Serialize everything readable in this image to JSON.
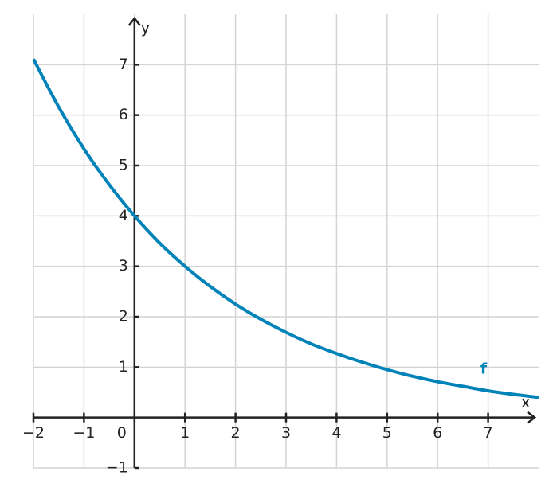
{
  "chart_data": {
    "type": "line",
    "x_label": "x",
    "y_label": "y",
    "x": [
      -2,
      -1.5,
      -1,
      -0.5,
      0,
      0.5,
      1,
      1.5,
      2,
      2.5,
      3,
      3.5,
      4,
      4.5,
      5,
      5.5,
      6,
      6.5,
      7,
      7.5,
      8
    ],
    "series": [
      {
        "name": "f",
        "color": "#0083b8",
        "values": [
          7.11,
          6.16,
          5.33,
          4.62,
          4,
          3.46,
          3,
          2.6,
          2.25,
          1.95,
          1.69,
          1.46,
          1.27,
          1.1,
          0.95,
          0.82,
          0.71,
          0.62,
          0.53,
          0.46,
          0.4
        ]
      }
    ],
    "xlim": [
      -2,
      8
    ],
    "ylim": [
      -1,
      8
    ],
    "xticks": [
      {
        "value": -2,
        "label": "−2"
      },
      {
        "value": -1,
        "label": "−1"
      },
      0,
      1,
      2,
      3,
      4,
      5,
      6,
      7
    ],
    "yticks": [
      {
        "value": -1,
        "label": "−1"
      },
      1,
      2,
      3,
      4,
      5,
      6,
      7
    ],
    "grid": true
  }
}
